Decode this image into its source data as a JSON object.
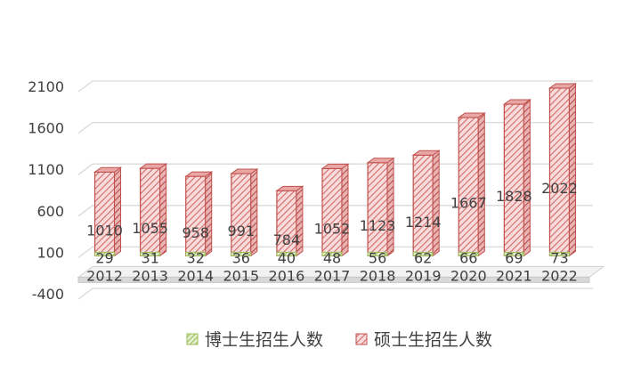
{
  "chart_data": {
    "type": "bar",
    "title": "",
    "xlabel": "",
    "ylabel": "",
    "categories": [
      "2012",
      "2013",
      "2014",
      "2015",
      "2016",
      "2017",
      "2018",
      "2019",
      "2020",
      "2021",
      "2022"
    ],
    "series": [
      {
        "name": "博士生招生人数",
        "values": [
          29,
          31,
          32,
          36,
          40,
          48,
          56,
          62,
          66,
          69,
          73
        ],
        "color": "#9BBB59"
      },
      {
        "name": "硕士生招生人数",
        "values": [
          1010,
          1055,
          958,
          991,
          784,
          1052,
          1123,
          1214,
          1667,
          1828,
          2022
        ],
        "color": "#C0504D"
      }
    ],
    "y_ticks": [
      "2100",
      "1600",
      "1100",
      "600",
      "100",
      "-400"
    ],
    "ylim": [
      -400,
      2100
    ],
    "grid": true,
    "legend_position": "bottom"
  }
}
